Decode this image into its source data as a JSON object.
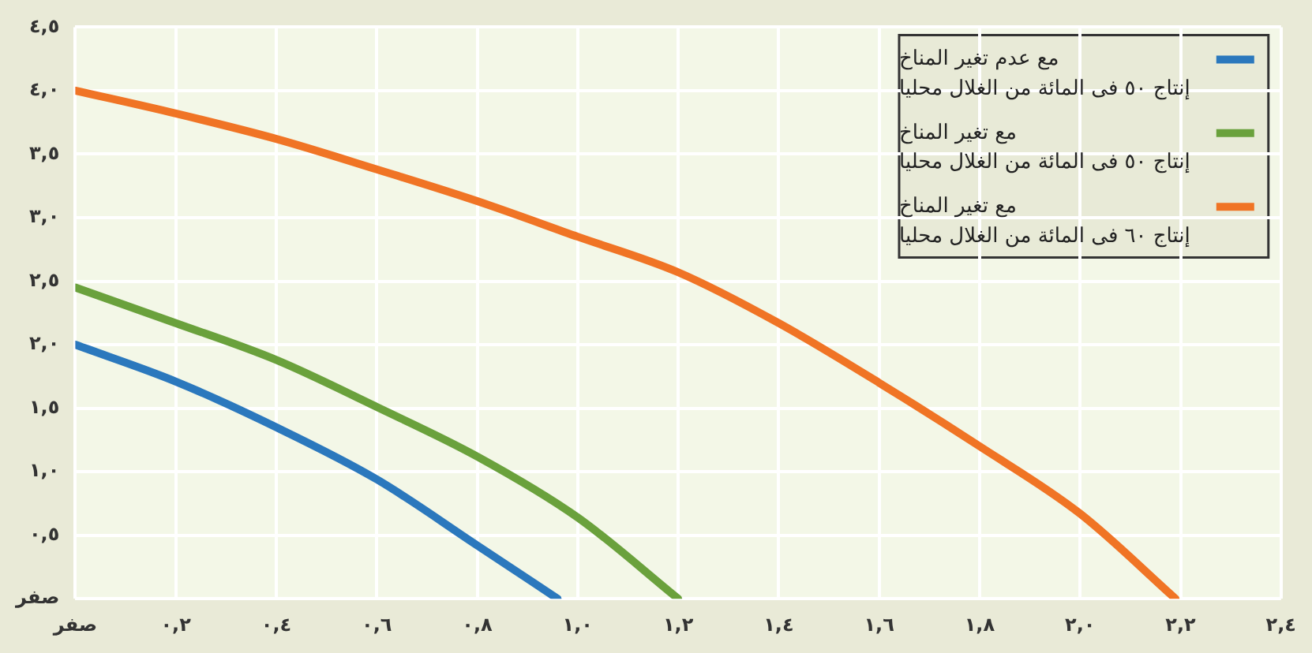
{
  "chart_data": {
    "type": "line",
    "marker": "none",
    "grid": true,
    "legend": "top right",
    "xlim": [
      0,
      2.4
    ],
    "ylim": [
      0,
      4.5
    ],
    "xticks": [
      {
        "value": 0,
        "label": "صفر"
      },
      {
        "value": 0.2,
        "label": "٠,٢"
      },
      {
        "value": 0.4,
        "label": "٠,٤"
      },
      {
        "value": 0.6,
        "label": "٠,٦"
      },
      {
        "value": 0.8,
        "label": "٠,٨"
      },
      {
        "value": 1,
        "label": "١,٠"
      },
      {
        "value": 1.2,
        "label": "١,٢"
      },
      {
        "value": 1.4,
        "label": "١,٤"
      },
      {
        "value": 1.6,
        "label": "١,٦"
      },
      {
        "value": 1.8,
        "label": "١,٨"
      },
      {
        "value": 2,
        "label": "٢,٠"
      },
      {
        "value": 2.2,
        "label": "٢,٢"
      },
      {
        "value": 2.4,
        "label": "٢,٤"
      }
    ],
    "yticks": [
      {
        "value": 0,
        "label": "صفر"
      },
      {
        "value": 0.5,
        "label": "٠,٥"
      },
      {
        "value": 1,
        "label": "١,٠"
      },
      {
        "value": 1.5,
        "label": "١,٥"
      },
      {
        "value": 2,
        "label": "٢,٠"
      },
      {
        "value": 2.5,
        "label": "٢,٥"
      },
      {
        "value": 3,
        "label": "٣,٠"
      },
      {
        "value": 3.5,
        "label": "٣,٥"
      },
      {
        "value": 4,
        "label": "٤,٠"
      },
      {
        "value": 4.5,
        "label": "٤,٥"
      }
    ],
    "series": [
      {
        "name": "مع عدم تغير المناخ\nإنتاج ٥٠ فى المائة من الغلال محليا",
        "color": "#2b78bd",
        "x": [
          0,
          0.2,
          0.4,
          0.6,
          0.8,
          0.96
        ],
        "values": [
          2.0,
          1.71,
          1.35,
          0.94,
          0.42,
          0
        ]
      },
      {
        "name": "مع تغير المناخ\nإنتاج ٥٠ فى المائة من الغلال محليا",
        "color": "#6aa13c",
        "x": [
          0,
          0.2,
          0.4,
          0.6,
          0.8,
          1.0,
          1.2
        ],
        "values": [
          2.45,
          2.17,
          1.88,
          1.51,
          1.12,
          0.64,
          0
        ]
      },
      {
        "name": "مع تغير المناخ\nإنتاج ٦٠ فى المائة من الغلال محليا",
        "color": "#f07425",
        "x": [
          0,
          0.2,
          0.4,
          0.6,
          0.8,
          1.0,
          1.2,
          1.4,
          1.6,
          1.8,
          2.0,
          2.19
        ],
        "values": [
          4.0,
          3.82,
          3.62,
          3.38,
          3.13,
          2.85,
          2.57,
          2.17,
          1.7,
          1.2,
          0.67,
          0
        ]
      }
    ]
  }
}
